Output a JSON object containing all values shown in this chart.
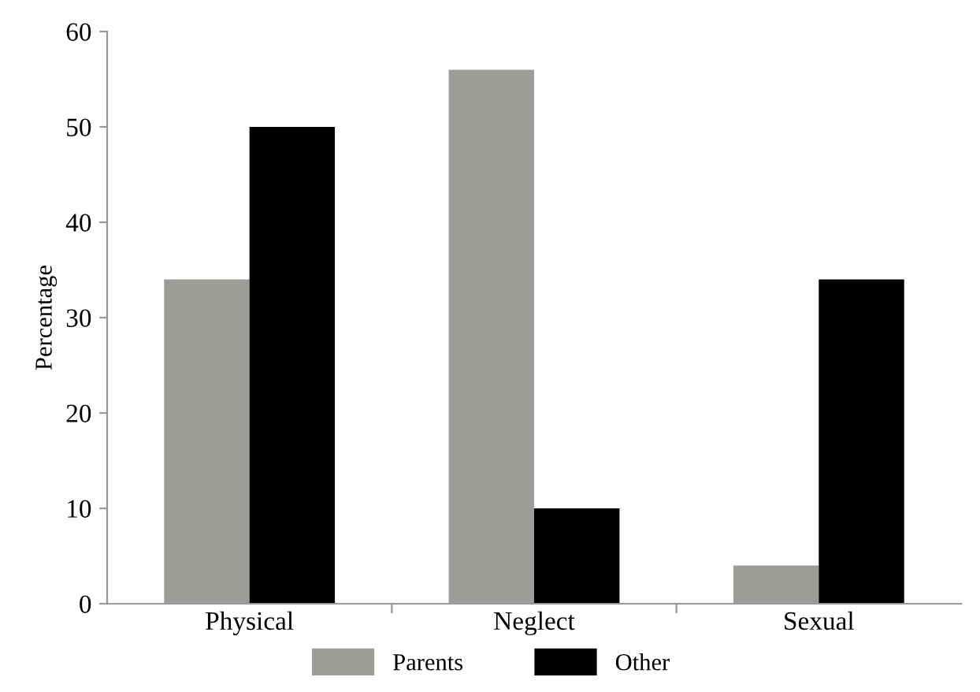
{
  "chart_data": {
    "type": "bar",
    "ylabel": "Percentage",
    "categories": [
      "Physical",
      "Neglect",
      "Sexual"
    ],
    "series": [
      {
        "name": "Parents",
        "color": "#9e9c99",
        "values": [
          34,
          56,
          4
        ]
      },
      {
        "name": "Other",
        "color": "#000000",
        "values": [
          50,
          10,
          34
        ]
      }
    ],
    "ylim": [
      0,
      60
    ],
    "yticks": [
      0,
      10,
      20,
      30,
      40,
      50,
      60
    ],
    "grid": false,
    "legend": "bottom"
  }
}
